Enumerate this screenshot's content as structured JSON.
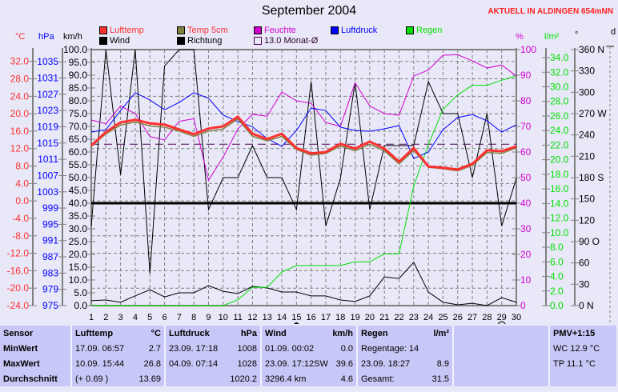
{
  "header": {
    "title": "September 2004",
    "aktuell": "AKTUELL IN ALDINGEN 654mNN"
  },
  "legend": {
    "lufttemp": "Lufttemp",
    "temp5cm": "Temp 5cm",
    "feuchte": "Feuchte",
    "luftdruck": "Luftdruck",
    "regen": "Regen",
    "wind": "Wind",
    "richtung": "Richtung",
    "monat": "13.0 Monat-Ø"
  },
  "colors": {
    "lufttemp": "#ff3030",
    "temp5cm": "#808040",
    "feuchte": "#d000d0",
    "luftdruck": "#0000ff",
    "regen": "#00e000",
    "wind": "#000000",
    "richtung": "#000000",
    "monat": "#500050"
  },
  "units": {
    "temp": "°C",
    "pressure": "hPa",
    "wind": "km/h",
    "humidity": "%",
    "rain": "l/m²",
    "direction": "°",
    "d": "d"
  },
  "chart_data": {
    "type": "line",
    "title": "September 2004",
    "x": [
      1,
      2,
      3,
      4,
      5,
      6,
      7,
      8,
      9,
      10,
      11,
      12,
      13,
      14,
      15,
      16,
      17,
      18,
      19,
      20,
      21,
      22,
      23,
      24,
      25,
      26,
      27,
      28,
      29,
      30
    ],
    "axes": {
      "temp": {
        "ylim": [
          -24,
          34.7
        ],
        "ticks": [
          "-24.0",
          "-20.0",
          "-16.0",
          "-12.0",
          "-8.0",
          "-4.0",
          "0.0",
          "4.0",
          "8.0",
          "12.0",
          "16.0",
          "20.0",
          "24.0",
          "28.0",
          "32.0"
        ]
      },
      "pressure": {
        "ylim": [
          975,
          1038
        ],
        "ticks": [
          "975",
          "979",
          "983",
          "987",
          "991",
          "995",
          "999",
          "1003",
          "1007",
          "1011",
          "1015",
          "1019",
          "1023",
          "1027",
          "1031",
          "1035"
        ]
      },
      "wind": {
        "ylim": [
          0,
          100
        ],
        "ticks": [
          "0.0",
          "5.0",
          "10.0",
          "15.0",
          "20.0",
          "25.0",
          "30.0",
          "35.0",
          "40.0",
          "45.0",
          "50.0",
          "55.0",
          "60.0",
          "65.0",
          "70.0",
          "75.0",
          "80.0",
          "85.0",
          "90.0",
          "95.0",
          "100.0"
        ]
      },
      "humidity": {
        "ylim": [
          0,
          100
        ],
        "ticks": [
          "0",
          "10",
          "20",
          "30",
          "40",
          "50",
          "60",
          "70",
          "80",
          "90",
          "100"
        ]
      },
      "rain": {
        "ylim": [
          0,
          35.1
        ],
        "ticks": [
          "0.0",
          "2.0",
          "4.0",
          "6.0",
          "8.0",
          "10.0",
          "12.0",
          "14.0",
          "16.0",
          "18.0",
          "20.0",
          "22.0",
          "24.0",
          "26.0",
          "28.0",
          "30.0",
          "32.0",
          "34.0"
        ]
      },
      "direction": {
        "ylim": [
          0,
          360
        ],
        "ticks": [
          "0   N",
          "30",
          "60",
          "90  O",
          "120",
          "150",
          "180 S",
          "210",
          "240",
          "270 W",
          "300",
          "330",
          "360 N"
        ]
      }
    },
    "series": [
      {
        "name": "Lufttemp",
        "axis": "temp",
        "values": [
          12.7,
          15.8,
          18.0,
          18.6,
          17.8,
          17.5,
          16.4,
          15.3,
          16.6,
          17.1,
          19.3,
          15.4,
          14.2,
          15.4,
          12.1,
          10.9,
          11.2,
          13.1,
          12.0,
          13.6,
          12.0,
          9.0,
          12.1,
          7.9,
          7.6,
          7.2,
          8.5,
          11.6,
          11.4,
          12.5
        ]
      },
      {
        "name": "Temp 5cm",
        "axis": "temp",
        "values": [
          12.5,
          15.4,
          17.4,
          18.1,
          17.2,
          16.9,
          16.0,
          14.8,
          16.0,
          16.5,
          18.8,
          14.8,
          13.8,
          14.8,
          11.8,
          10.5,
          10.9,
          12.6,
          11.5,
          13.0,
          11.5,
          8.5,
          11.6,
          7.7,
          7.4,
          6.9,
          8.2,
          11.1,
          10.9,
          12.2
        ]
      },
      {
        "name": "Feuchte",
        "axis": "humidity",
        "values": [
          72.5,
          71,
          78,
          75,
          66,
          64.7,
          72,
          73,
          49,
          58,
          69,
          74.7,
          74,
          83.4,
          80,
          79,
          71.5,
          70,
          87,
          78,
          75,
          74.4,
          89.7,
          92,
          97.8,
          98,
          95.6,
          92.8,
          94,
          89.7
        ]
      },
      {
        "name": "Luftdruck",
        "axis": "pressure",
        "values": [
          1017.7,
          1018.3,
          1023,
          1027.4,
          1025.6,
          1023.2,
          1025,
          1027.4,
          1026,
          1021.9,
          1020.3,
          1019,
          1016.1,
          1014.2,
          1018.1,
          1023.6,
          1023,
          1018.9,
          1018.1,
          1017.9,
          1018.5,
          1019.3,
          1011.2,
          1012.8,
          1018.3,
          1021.3,
          1022,
          1020.5,
          1017.7,
          1019.5
        ]
      },
      {
        "name": "Regen",
        "axis": "rain",
        "values": [
          0,
          0,
          0,
          0,
          0,
          0,
          0,
          0,
          0,
          0,
          0.8,
          2.5,
          2.5,
          4.6,
          5.5,
          5.5,
          5.5,
          5.5,
          6.0,
          6.0,
          7.1,
          7.1,
          16.4,
          22.1,
          26.9,
          28.9,
          30.2,
          30.2,
          30.9,
          31.5
        ]
      },
      {
        "name": "Wind",
        "axis": "wind",
        "values": [
          1.9,
          2.2,
          1.3,
          3.8,
          6.2,
          3.4,
          5,
          5,
          7.8,
          5.6,
          4.7,
          7.5,
          6.9,
          5.3,
          5.3,
          3.8,
          3.8,
          2.2,
          1.6,
          3.8,
          11.2,
          10.6,
          16.9,
          5.3,
          1.3,
          0.3,
          0.9,
          0,
          3.1,
          1.3
        ]
      },
      {
        "name": "Richtung",
        "axis": "direction",
        "values": [
          112,
          360,
          184,
          360,
          45,
          337,
          360,
          360,
          135,
          180,
          180,
          225,
          180,
          180,
          135,
          315,
          112,
          179,
          314,
          135,
          225,
          225,
          225,
          315,
          270,
          270,
          180,
          270,
          112,
          179
        ]
      }
    ],
    "reference_lines": [
      {
        "name": "Monat-Ø",
        "axis": "temp",
        "value": 13.0
      },
      {
        "name": "Wind-Referenz",
        "axis": "wind",
        "value": 40
      }
    ],
    "moon": {
      "new_moon_day": 15,
      "full_moon_day": 29
    },
    "grid": true
  },
  "table": {
    "headers": [
      {
        "label": "Sensor",
        "unit": ""
      },
      {
        "label": "Lufttemp",
        "unit": "°C"
      },
      {
        "label": "Luftdruck",
        "unit": "hPa"
      },
      {
        "label": "Wind",
        "unit": "km/h"
      },
      {
        "label": "Regen",
        "unit": "l/m²"
      },
      {
        "label": "",
        "unit": ""
      },
      {
        "label": "PMV+1:15",
        "unit": ""
      }
    ],
    "rows": [
      {
        "label": "MinWert",
        "cells": [
          [
            "17.09.  06:57",
            "2.7"
          ],
          [
            "23.09.  17:18",
            "1008"
          ],
          [
            "01.09.  00:02",
            "0.0"
          ],
          [
            "Regentage: 14",
            ""
          ],
          [
            "",
            ""
          ],
          [
            "WC 12.9 °C",
            ""
          ]
        ]
      },
      {
        "label": "MaxWert",
        "cells": [
          [
            "10.09.  15:44",
            "26.8"
          ],
          [
            "04.09.  07:14",
            "1028"
          ],
          [
            "23.09.  17:12SW",
            "39.6"
          ],
          [
            "23.09.  18:27",
            "8.9"
          ],
          [
            "",
            ""
          ],
          [
            "TP 11.1 °C",
            ""
          ]
        ]
      },
      {
        "label": "Durchschnitt",
        "cells": [
          [
            "(+ 0.69 )",
            "13.69"
          ],
          [
            "",
            "1020.2"
          ],
          [
            "3296.4 km",
            "4.6"
          ],
          [
            "Gesamt:",
            "31.5"
          ],
          [
            "",
            ""
          ],
          [
            "",
            ""
          ]
        ]
      }
    ]
  }
}
